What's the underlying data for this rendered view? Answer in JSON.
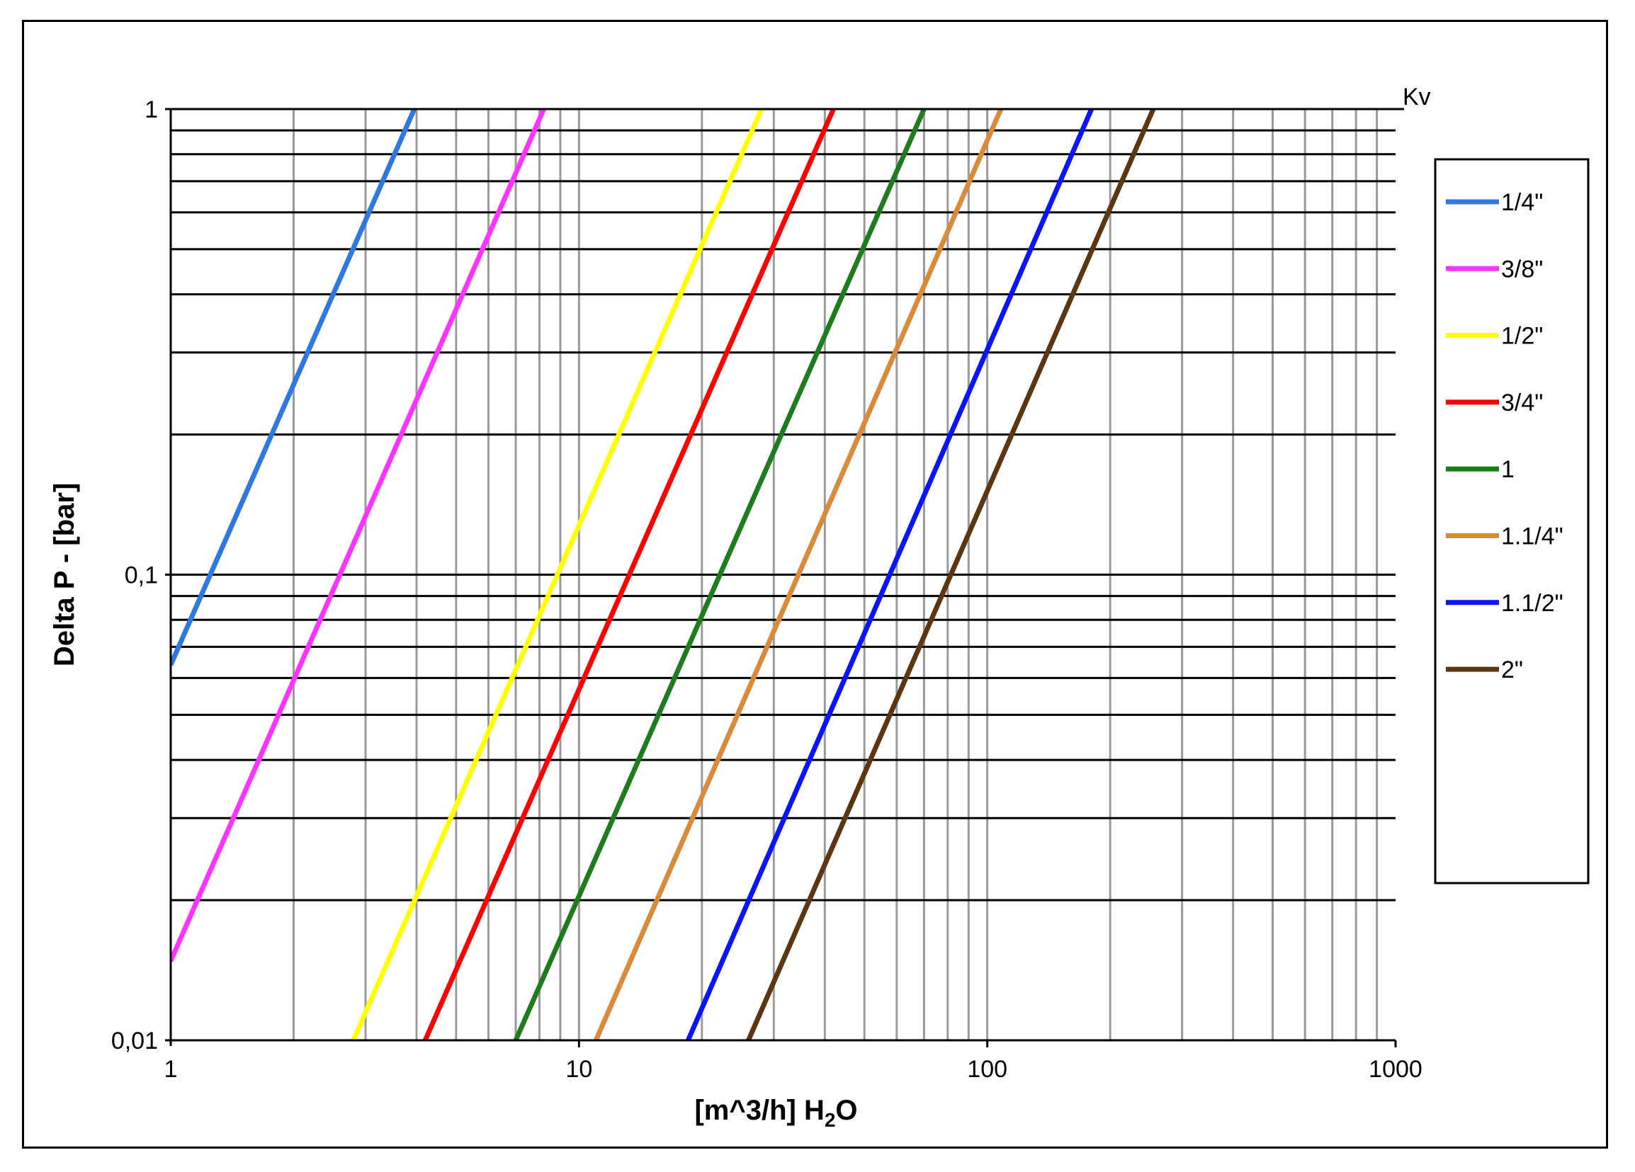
{
  "chart_data": {
    "type": "line",
    "x_scale": "log",
    "y_scale": "log",
    "xlim": [
      1,
      1000
    ],
    "ylim": [
      0.01,
      1
    ],
    "x_ticks": [
      "1",
      "10",
      "100",
      "1000"
    ],
    "y_ticks": [
      "0,01",
      "0,1",
      "1"
    ],
    "xlabel_main": "[m^3/h] H",
    "xlabel_sub": "2",
    "xlabel_end": "O",
    "ylabel": "Delta P - [bar]",
    "corner_label": "Kv",
    "grid": true,
    "legend_position": "right",
    "series": [
      {
        "name": "1/4\"",
        "color": "#2F78E0",
        "points": [
          [
            1,
            0.064
          ],
          [
            3.95,
            1
          ]
        ]
      },
      {
        "name": "3/8\"",
        "color": "#FF33FF",
        "points": [
          [
            1,
            0.0148
          ],
          [
            8.2,
            1
          ]
        ]
      },
      {
        "name": "1/2\"",
        "color": "#FFFF00",
        "points": [
          [
            2.8,
            0.01
          ],
          [
            28,
            1
          ]
        ]
      },
      {
        "name": "3/4\"",
        "color": "#FF0000",
        "points": [
          [
            4.2,
            0.01
          ],
          [
            42,
            1
          ]
        ]
      },
      {
        "name": "1",
        "color": "#1E7B1E",
        "points": [
          [
            7.0,
            0.01
          ],
          [
            70,
            1
          ]
        ]
      },
      {
        "name": "1.1/4\"",
        "color": "#D98A3A",
        "points": [
          [
            11,
            0.01
          ],
          [
            108,
            1
          ]
        ]
      },
      {
        "name": "1.1/2\"",
        "color": "#0A14FF",
        "points": [
          [
            18.5,
            0.01
          ],
          [
            180,
            1
          ]
        ]
      },
      {
        "name": "2\"",
        "color": "#5C3511",
        "points": [
          [
            26,
            0.01
          ],
          [
            255,
            1
          ]
        ]
      }
    ]
  }
}
